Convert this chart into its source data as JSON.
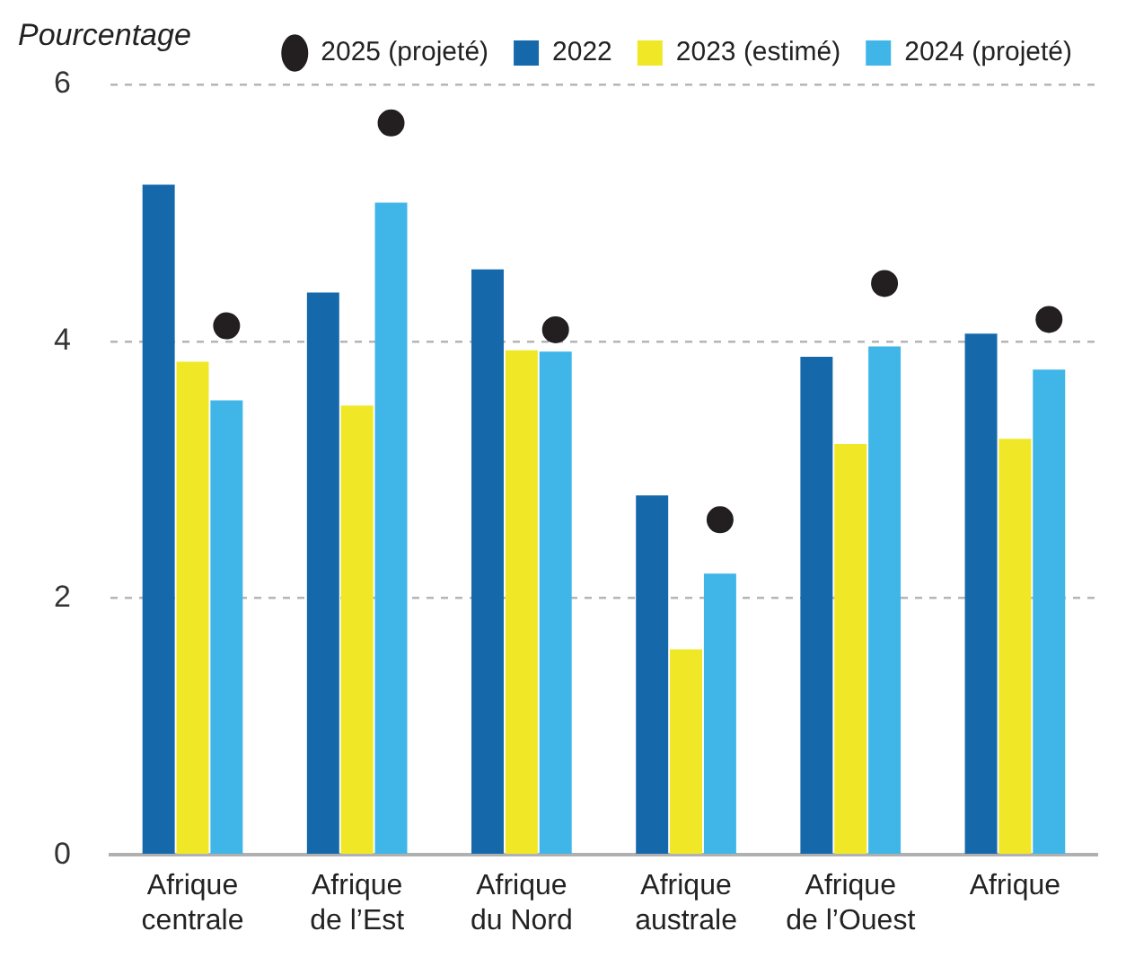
{
  "chart_data": {
    "type": "bar",
    "ylabel": "Pourcentage",
    "categories": [
      "Afrique centrale",
      "Afrique de l’Est",
      "Afrique du Nord",
      "Afrique australe",
      "Afrique de l’Ouest",
      "Afrique"
    ],
    "series": [
      {
        "name": "2022",
        "color": "#1569ab",
        "values": [
          5.22,
          4.38,
          4.56,
          2.8,
          3.88,
          4.06
        ]
      },
      {
        "name": "2023 (estimé)",
        "color": "#f0e826",
        "values": [
          3.84,
          3.5,
          3.93,
          1.6,
          3.2,
          3.24
        ]
      },
      {
        "name": "2024 (projeté)",
        "color": "#40b6e8",
        "values": [
          3.54,
          5.08,
          3.92,
          2.19,
          3.96,
          3.78
        ]
      },
      {
        "name": "2025 (projeté)",
        "type": "scatter",
        "color": "#231f20",
        "values": [
          4.12,
          5.7,
          4.09,
          2.61,
          4.45,
          4.17
        ]
      }
    ],
    "ylim": [
      0,
      6
    ],
    "yticks": [
      0,
      2,
      4,
      6
    ],
    "grid": "y",
    "legend": "top right",
    "marker": "circle"
  }
}
